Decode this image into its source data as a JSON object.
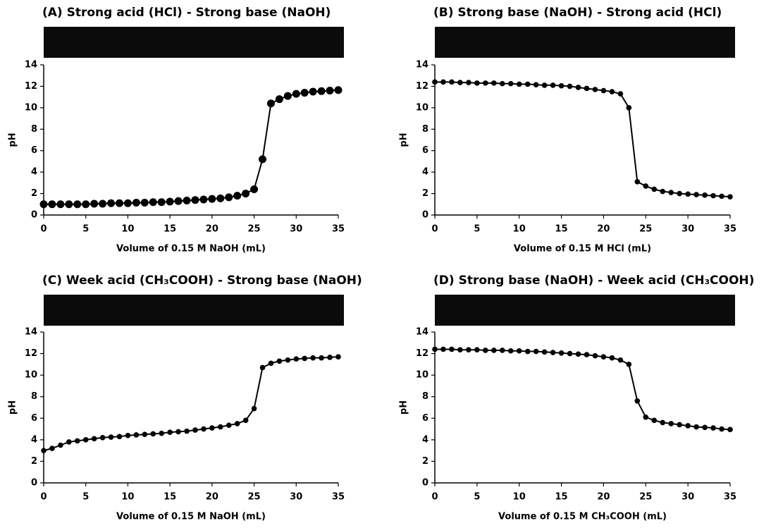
{
  "chart_data": [
    {
      "type": "line",
      "title": "(A) Strong acid (HCl) - Strong base (NaOH)",
      "xlabel": "Volume of 0.15 M NaOH (mL)",
      "ylabel": "pH",
      "color": "#000000",
      "x": [
        0,
        1,
        2,
        3,
        4,
        5,
        6,
        7,
        8,
        9,
        10,
        11,
        12,
        13,
        14,
        15,
        16,
        17,
        18,
        19,
        20,
        21,
        22,
        23,
        24,
        25,
        26,
        27,
        28,
        29,
        30,
        31,
        32,
        33,
        34,
        35
      ],
      "values": [
        1.0,
        1.0,
        1.0,
        1.0,
        1.0,
        1.0,
        1.05,
        1.05,
        1.1,
        1.1,
        1.1,
        1.15,
        1.15,
        1.2,
        1.2,
        1.25,
        1.3,
        1.35,
        1.4,
        1.45,
        1.5,
        1.55,
        1.65,
        1.8,
        2.0,
        2.4,
        5.2,
        10.4,
        10.8,
        11.1,
        11.3,
        11.4,
        11.5,
        11.55,
        11.6,
        11.65
      ],
      "xlim": [
        0,
        35
      ],
      "ylim": [
        0,
        14
      ],
      "xticks": [
        0,
        5,
        10,
        15,
        20,
        25,
        30,
        35
      ],
      "yticks": [
        0,
        2,
        4,
        6,
        8,
        10,
        12,
        14
      ]
    },
    {
      "type": "line",
      "title": "(B) Strong base (NaOH) - Strong acid (HCl)",
      "xlabel": "Volume of 0.15 M HCl (mL)",
      "ylabel": "pH",
      "color": "#000000",
      "x": [
        0,
        1,
        2,
        3,
        4,
        5,
        6,
        7,
        8,
        9,
        10,
        11,
        12,
        13,
        14,
        15,
        16,
        17,
        18,
        19,
        20,
        21,
        22,
        23,
        24,
        25,
        26,
        27,
        28,
        29,
        30,
        31,
        32,
        33,
        34,
        35
      ],
      "values": [
        12.4,
        12.4,
        12.4,
        12.35,
        12.35,
        12.3,
        12.3,
        12.3,
        12.25,
        12.25,
        12.2,
        12.2,
        12.15,
        12.1,
        12.1,
        12.05,
        12.0,
        11.9,
        11.8,
        11.7,
        11.6,
        11.5,
        11.3,
        10.0,
        3.1,
        2.7,
        2.4,
        2.2,
        2.1,
        2.0,
        1.95,
        1.9,
        1.85,
        1.8,
        1.75,
        1.7
      ],
      "xlim": [
        0,
        35
      ],
      "ylim": [
        0,
        14
      ],
      "xticks": [
        0,
        5,
        10,
        15,
        20,
        25,
        30,
        35
      ],
      "yticks": [
        0,
        2,
        4,
        6,
        8,
        10,
        12,
        14
      ]
    },
    {
      "type": "line",
      "title": "(C) Week acid (CH₃COOH) - Strong base (NaOH)",
      "xlabel": "Volume of 0.15 M NaOH (mL)",
      "ylabel": "pH",
      "color": "#000000",
      "x": [
        0,
        1,
        2,
        3,
        4,
        5,
        6,
        7,
        8,
        9,
        10,
        11,
        12,
        13,
        14,
        15,
        16,
        17,
        18,
        19,
        20,
        21,
        22,
        23,
        24,
        25,
        26,
        27,
        28,
        29,
        30,
        31,
        32,
        33,
        34,
        35
      ],
      "values": [
        3.0,
        3.2,
        3.5,
        3.8,
        3.9,
        4.0,
        4.1,
        4.2,
        4.25,
        4.3,
        4.4,
        4.45,
        4.5,
        4.55,
        4.6,
        4.7,
        4.75,
        4.8,
        4.9,
        5.0,
        5.1,
        5.2,
        5.35,
        5.5,
        5.8,
        6.9,
        10.7,
        11.1,
        11.3,
        11.4,
        11.5,
        11.55,
        11.6,
        11.6,
        11.65,
        11.7
      ],
      "xlim": [
        0,
        35
      ],
      "ylim": [
        0,
        14
      ],
      "xticks": [
        0,
        5,
        10,
        15,
        20,
        25,
        30,
        35
      ],
      "yticks": [
        0,
        2,
        4,
        6,
        8,
        10,
        12,
        14
      ]
    },
    {
      "type": "line",
      "title": "(D) Strong base (NaOH) - Week acid (CH₃COOH)",
      "xlabel": "Volume of 0.15 M CH₃COOH (mL)",
      "ylabel": "pH",
      "color": "#000000",
      "x": [
        0,
        1,
        2,
        3,
        4,
        5,
        6,
        7,
        8,
        9,
        10,
        11,
        12,
        13,
        14,
        15,
        16,
        17,
        18,
        19,
        20,
        21,
        22,
        23,
        24,
        25,
        26,
        27,
        28,
        29,
        30,
        31,
        32,
        33,
        34,
        35
      ],
      "values": [
        12.4,
        12.4,
        12.4,
        12.35,
        12.35,
        12.35,
        12.3,
        12.3,
        12.3,
        12.25,
        12.25,
        12.2,
        12.2,
        12.15,
        12.1,
        12.05,
        12.0,
        11.95,
        11.9,
        11.8,
        11.7,
        11.6,
        11.4,
        11.0,
        7.6,
        6.1,
        5.8,
        5.6,
        5.5,
        5.4,
        5.3,
        5.2,
        5.15,
        5.1,
        5.0,
        4.95
      ],
      "xlim": [
        0,
        35
      ],
      "ylim": [
        0,
        14
      ],
      "xticks": [
        0,
        5,
        10,
        15,
        20,
        25,
        30,
        35
      ],
      "yticks": [
        0,
        2,
        4,
        6,
        8,
        10,
        12,
        14
      ]
    }
  ]
}
